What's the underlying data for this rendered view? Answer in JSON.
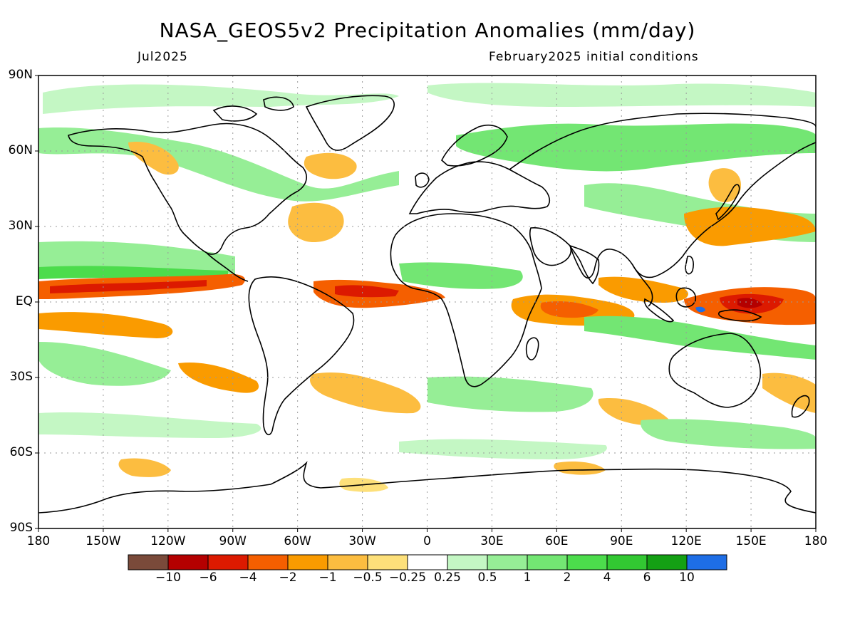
{
  "title": "NASA_GEOS5v2 Precipitation Anomalies (mm/day)",
  "valid_month": "Jul2025",
  "initial_conditions": "February2025 initial conditions",
  "lat_labels": [
    "90N",
    "60N",
    "30N",
    "EQ",
    "30S",
    "60S",
    "90S"
  ],
  "lon_labels": [
    "180",
    "150W",
    "120W",
    "90W",
    "60W",
    "30W",
    "0",
    "30E",
    "60E",
    "90E",
    "120E",
    "150E",
    "180"
  ],
  "colorbar": {
    "colors": [
      "#7a4a3a",
      "#b40000",
      "#dc1a00",
      "#f55f00",
      "#fa9b00",
      "#fcbd40",
      "#fde07a",
      "#ffffff",
      "#c4f7c4",
      "#96ee96",
      "#73e673",
      "#4cdc4c",
      "#32c832",
      "#14a014",
      "#1e6ee6"
    ],
    "labels": [
      "−10",
      "−6",
      "−4",
      "−2",
      "−1",
      "−0.5",
      "−0.25",
      "0.25",
      "0.5",
      "1",
      "2",
      "4",
      "6",
      "10"
    ]
  },
  "anomaly_colors": {
    "dry_strong": "#dc1a00",
    "dry": "#f55f00",
    "dry_moderate": "#fa9b00",
    "dry_weak": "#fde07a",
    "wet_weak": "#c4f7c4",
    "wet": "#73e673",
    "wet_moderate": "#4cdc4c",
    "wet_strong": "#14a014",
    "extreme_wet": "#1e6ee6",
    "extreme_dry": "#7a4a3a"
  }
}
